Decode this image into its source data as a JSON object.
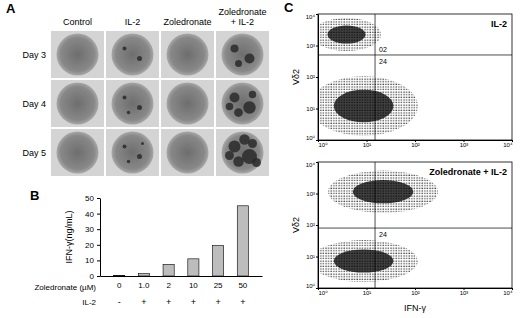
{
  "panel_a": {
    "letter": "A",
    "columns": [
      "Control",
      "IL-2",
      "Zoledronate",
      "Zoledronate + IL-2"
    ],
    "rows": [
      "Day 3",
      "Day 4",
      "Day 5"
    ]
  },
  "chart_data": {
    "type": "bar",
    "letter": "B",
    "y_label": "IFN-γ(ng/mL)",
    "category_row_label": "Zoledronate (µM)",
    "categories": [
      "0",
      "1.0",
      "2",
      "10",
      "25",
      "50"
    ],
    "il2_row_label": "IL-2",
    "il2": [
      "-",
      "+",
      "+",
      "+",
      "+",
      "+"
    ],
    "values": [
      0.3,
      1.5,
      7.5,
      11,
      19.5,
      45
    ],
    "color": "#bdbdbd",
    "ylim": [
      0,
      50
    ],
    "yticks": [
      0,
      10,
      20,
      30,
      40,
      50
    ]
  },
  "panel_c": {
    "type": "scatter",
    "letter": "C",
    "x_label": "IFN-γ",
    "y_label": "Vδ2",
    "log": true,
    "xlim": [
      1,
      10000
    ],
    "ylim": [
      1,
      10000
    ],
    "xticks": [
      {
        "value": 1,
        "label": "10⁰"
      },
      {
        "value": 10,
        "label": "10¹"
      },
      {
        "value": 100,
        "label": "10²"
      },
      {
        "value": 1000,
        "label": "10³"
      },
      {
        "value": 10000,
        "label": "10⁴"
      }
    ],
    "yticks": [
      {
        "value": 1,
        "label": "10⁰"
      },
      {
        "value": 10,
        "label": "10¹"
      },
      {
        "value": 100,
        "label": "10²"
      },
      {
        "value": 1000,
        "label": "10³"
      },
      {
        "value": 10000,
        "label": "10⁴"
      }
    ],
    "plots": [
      {
        "title": "IL-2",
        "gate_x": 15,
        "gate_y": 500,
        "upper_right": "02",
        "lower_right": "24"
      },
      {
        "title": "Zoledronate + IL-2",
        "gate_x": 15,
        "gate_y": 80,
        "lower_right": "24"
      }
    ]
  }
}
